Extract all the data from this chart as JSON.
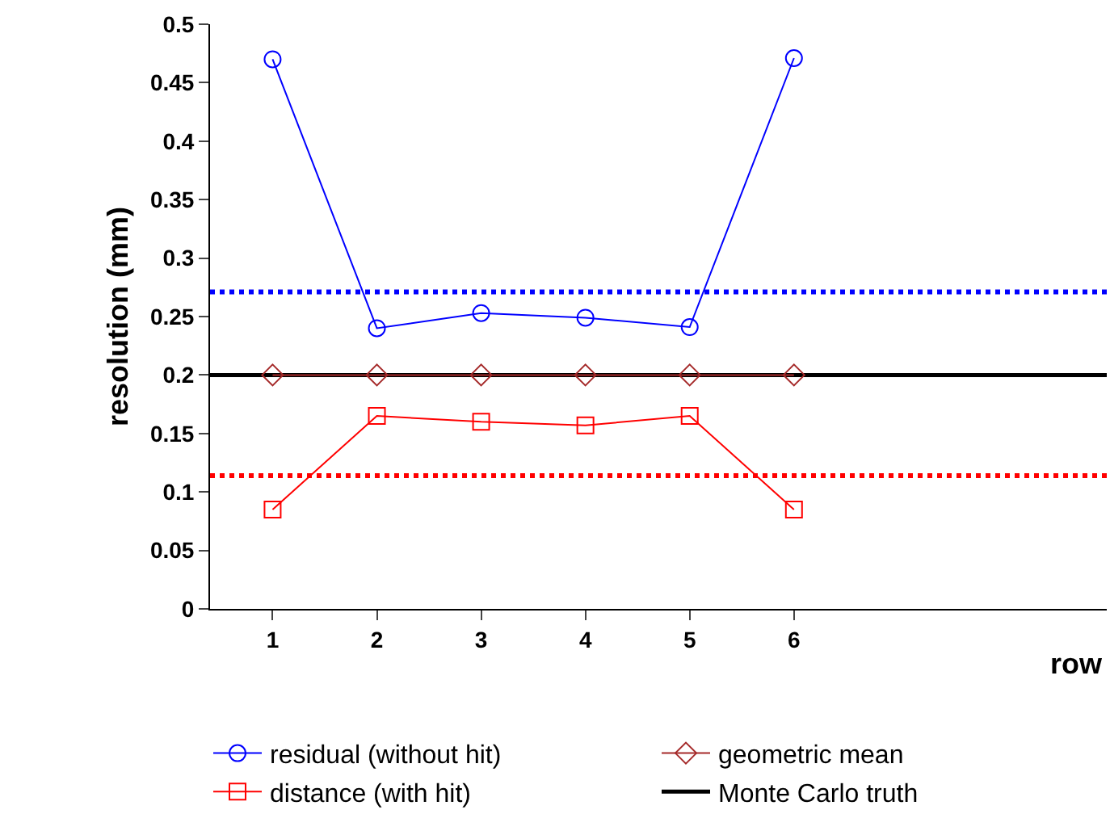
{
  "chart_data": {
    "type": "line",
    "xlabel": "row",
    "ylabel": "resolution (mm)",
    "x": [
      1,
      2,
      3,
      4,
      5,
      6
    ],
    "xlim": [
      0.4,
      9.0
    ],
    "xticks": [
      1,
      2,
      3,
      4,
      5,
      6
    ],
    "ylim": [
      0,
      0.5
    ],
    "yticks": [
      0,
      0.05,
      0.1,
      0.15,
      0.2,
      0.25,
      0.3,
      0.35,
      0.4,
      0.45,
      0.5
    ],
    "series": [
      {
        "name": "residual (without hit)",
        "color": "#0000ff",
        "marker": "circle",
        "values": [
          0.47,
          0.24,
          0.253,
          0.249,
          0.241,
          0.471
        ]
      },
      {
        "name": "geometric mean",
        "color": "#a52a2a",
        "marker": "diamond",
        "values": [
          0.2,
          0.2,
          0.2,
          0.2,
          0.2,
          0.2
        ]
      },
      {
        "name": "distance (with hit)",
        "color": "#ff0000",
        "marker": "square",
        "values": [
          0.085,
          0.165,
          0.16,
          0.157,
          0.165,
          0.085
        ]
      },
      {
        "name": "Monte Carlo truth",
        "color": "#000000",
        "marker": "none",
        "x": [
          0.4,
          9.0
        ],
        "values": [
          0.2,
          0.2
        ]
      }
    ],
    "ref_lines": [
      {
        "axis": "y",
        "value": 0.271,
        "color": "#0000ff",
        "line_style": "dotted"
      },
      {
        "axis": "y",
        "value": 0.114,
        "color": "#ff0000",
        "line_style": "dotted"
      }
    ],
    "legend": "bottom"
  }
}
